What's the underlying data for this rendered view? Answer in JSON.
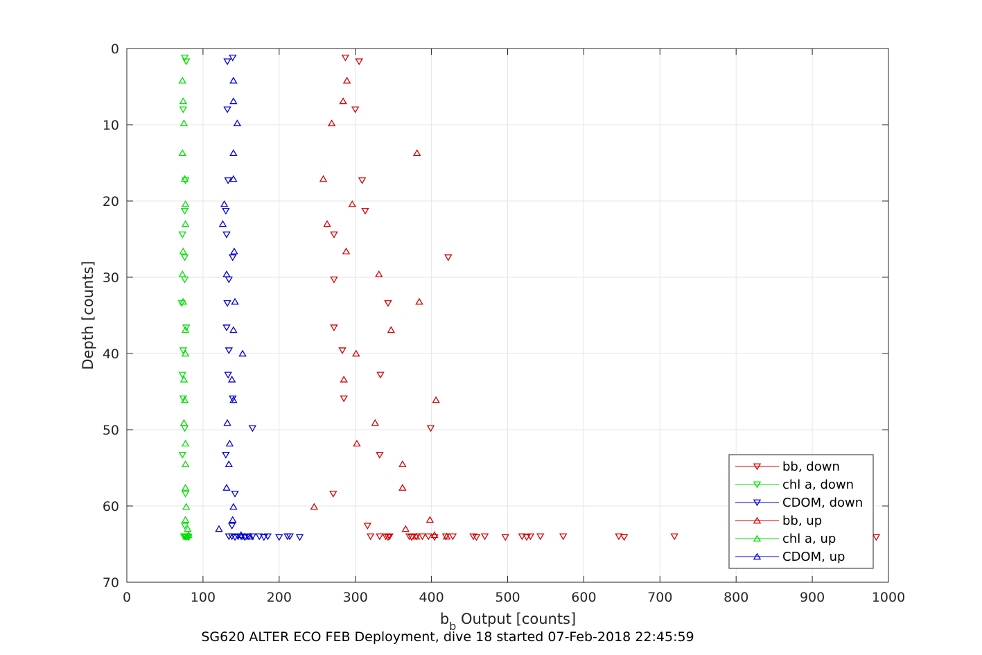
{
  "chart_data": {
    "type": "scatter",
    "xlabel_main": "b",
    "xlabel_sub": "b",
    "xlabel_rest": " Output [counts]",
    "ylabel": "Depth [counts]",
    "caption": "SG620 ALTER ECO FEB Deployment, dive 18 started 07-Feb-2018 22:45:59",
    "xlim": [
      0,
      1000
    ],
    "ylim": [
      0,
      70
    ],
    "y_reversed": true,
    "grid": true,
    "legend_position": "bottom-right",
    "x_ticks": [
      "0",
      "100",
      "200",
      "300",
      "400",
      "500",
      "600",
      "700",
      "800",
      "900",
      "1000"
    ],
    "y_ticks": [
      "0",
      "10",
      "20",
      "30",
      "40",
      "50",
      "60",
      "70"
    ],
    "series": [
      {
        "name": "bb, down",
        "color": "#d40000",
        "marker": "triangle-down",
        "points": [
          [
            287,
            1.2
          ],
          [
            305,
            1.7
          ],
          [
            300,
            8.0
          ],
          [
            309,
            17.3
          ],
          [
            313,
            21.3
          ],
          [
            272,
            24.4
          ],
          [
            422,
            27.4
          ],
          [
            272,
            30.3
          ],
          [
            343,
            33.4
          ],
          [
            272,
            36.6
          ],
          [
            283,
            39.6
          ],
          [
            333,
            42.8
          ],
          [
            285,
            45.9
          ],
          [
            399,
            49.8
          ],
          [
            332,
            53.3
          ],
          [
            271,
            58.4
          ],
          [
            316,
            62.6
          ],
          [
            320,
            64.0
          ],
          [
            332,
            64.0
          ],
          [
            340,
            64.0
          ],
          [
            345,
            64.0
          ],
          [
            343,
            64.1
          ],
          [
            371,
            64.0
          ],
          [
            374,
            64.1
          ],
          [
            380,
            64.0
          ],
          [
            388,
            64.0
          ],
          [
            396,
            64.0
          ],
          [
            404,
            64.1
          ],
          [
            419,
            64.0
          ],
          [
            428,
            64.0
          ],
          [
            455,
            64.0
          ],
          [
            459,
            64.1
          ],
          [
            470,
            64.0
          ],
          [
            497,
            64.1
          ],
          [
            519,
            64.0
          ],
          [
            525,
            64.1
          ],
          [
            530,
            64.0
          ],
          [
            543,
            64.0
          ],
          [
            573,
            64.0
          ],
          [
            646,
            64.0
          ],
          [
            653,
            64.1
          ],
          [
            719,
            64.0
          ],
          [
            984,
            64.1
          ]
        ]
      },
      {
        "name": "chl a, down",
        "color": "#00e000",
        "marker": "triangle-down",
        "points": [
          [
            76,
            1.2
          ],
          [
            78,
            1.7
          ],
          [
            74,
            8.0
          ],
          [
            77,
            17.3
          ],
          [
            76,
            21.3
          ],
          [
            73,
            24.4
          ],
          [
            76,
            27.4
          ],
          [
            76,
            30.3
          ],
          [
            72,
            33.4
          ],
          [
            78,
            36.6
          ],
          [
            74,
            39.6
          ],
          [
            73,
            42.8
          ],
          [
            74,
            45.9
          ],
          [
            76,
            49.8
          ],
          [
            73,
            53.3
          ],
          [
            77,
            58.4
          ],
          [
            76,
            62.6
          ],
          [
            75,
            64.0
          ],
          [
            77,
            64.0
          ],
          [
            78,
            64.1
          ],
          [
            80,
            64.0
          ],
          [
            81,
            64.1
          ],
          [
            76,
            64.0
          ]
        ]
      },
      {
        "name": "CDOM, down",
        "color": "#0000d4",
        "marker": "triangle-down",
        "points": [
          [
            139,
            1.2
          ],
          [
            132,
            1.7
          ],
          [
            132,
            8.0
          ],
          [
            133,
            17.3
          ],
          [
            130,
            21.3
          ],
          [
            131,
            24.4
          ],
          [
            139,
            27.4
          ],
          [
            134,
            30.3
          ],
          [
            132,
            33.4
          ],
          [
            131,
            36.6
          ],
          [
            134,
            39.6
          ],
          [
            133,
            42.8
          ],
          [
            139,
            45.9
          ],
          [
            165,
            49.8
          ],
          [
            130,
            53.3
          ],
          [
            142,
            58.4
          ],
          [
            138,
            62.6
          ],
          [
            134,
            64.0
          ],
          [
            138,
            64.0
          ],
          [
            142,
            64.1
          ],
          [
            146,
            64.0
          ],
          [
            150,
            64.0
          ],
          [
            155,
            64.1
          ],
          [
            160,
            64.0
          ],
          [
            165,
            64.0
          ],
          [
            174,
            64.0
          ],
          [
            180,
            64.1
          ],
          [
            185,
            64.0
          ],
          [
            200,
            64.1
          ],
          [
            211,
            64.0
          ],
          [
            214,
            64.0
          ],
          [
            227,
            64.1
          ]
        ]
      },
      {
        "name": "bb, up",
        "color": "#d40000",
        "marker": "triangle-up",
        "points": [
          [
            289,
            4.2
          ],
          [
            284,
            6.9
          ],
          [
            269,
            9.8
          ],
          [
            381,
            13.7
          ],
          [
            258,
            17.1
          ],
          [
            296,
            20.4
          ],
          [
            263,
            23.0
          ],
          [
            288,
            26.6
          ],
          [
            331,
            29.6
          ],
          [
            384,
            33.2
          ],
          [
            347,
            36.9
          ],
          [
            301,
            40.0
          ],
          [
            285,
            43.4
          ],
          [
            406,
            46.1
          ],
          [
            326,
            49.1
          ],
          [
            302,
            51.8
          ],
          [
            362,
            54.5
          ],
          [
            362,
            57.6
          ],
          [
            246,
            60.1
          ],
          [
            398,
            61.8
          ],
          [
            366,
            63.0
          ],
          [
            404,
            63.8
          ],
          [
            420,
            64.0
          ],
          [
            380,
            64.0
          ]
        ]
      },
      {
        "name": "chl a, up",
        "color": "#00e000",
        "marker": "triangle-up",
        "points": [
          [
            73,
            4.2
          ],
          [
            74,
            6.9
          ],
          [
            75,
            9.8
          ],
          [
            73,
            13.7
          ],
          [
            76,
            17.1
          ],
          [
            77,
            20.4
          ],
          [
            77,
            23.0
          ],
          [
            74,
            26.6
          ],
          [
            73,
            29.6
          ],
          [
            74,
            33.2
          ],
          [
            77,
            36.9
          ],
          [
            77,
            40.0
          ],
          [
            75,
            43.4
          ],
          [
            76,
            46.1
          ],
          [
            75,
            49.1
          ],
          [
            77,
            51.8
          ],
          [
            77,
            54.5
          ],
          [
            77,
            57.6
          ],
          [
            78,
            60.1
          ],
          [
            77,
            61.8
          ],
          [
            80,
            63.0
          ],
          [
            81,
            63.8
          ],
          [
            78,
            64.0
          ]
        ]
      },
      {
        "name": "CDOM, up",
        "color": "#0000d4",
        "marker": "triangle-up",
        "points": [
          [
            140,
            4.2
          ],
          [
            140,
            6.9
          ],
          [
            145,
            9.8
          ],
          [
            140,
            13.7
          ],
          [
            140,
            17.1
          ],
          [
            128,
            20.4
          ],
          [
            126,
            23.0
          ],
          [
            141,
            26.6
          ],
          [
            131,
            29.6
          ],
          [
            142,
            33.2
          ],
          [
            140,
            36.9
          ],
          [
            152,
            40.0
          ],
          [
            138,
            43.4
          ],
          [
            140,
            46.1
          ],
          [
            132,
            49.1
          ],
          [
            135,
            51.8
          ],
          [
            134,
            54.5
          ],
          [
            131,
            57.6
          ],
          [
            140,
            60.1
          ],
          [
            139,
            61.8
          ],
          [
            121,
            63.0
          ],
          [
            150,
            63.8
          ],
          [
            155,
            64.0
          ],
          [
            162,
            64.0
          ]
        ]
      }
    ]
  }
}
